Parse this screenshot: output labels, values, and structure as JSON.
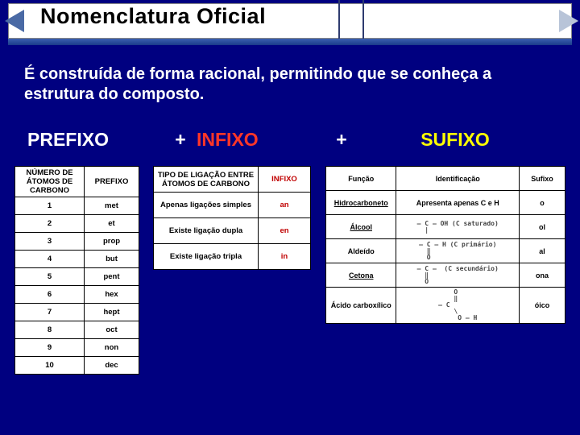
{
  "header": {
    "title": "Nomenclatura Oficial"
  },
  "subtitle": "É construída de forma racional, permitindo que se conheça a estrutura do composto.",
  "formula": {
    "prefixo": "PREFIXO",
    "plus": "+",
    "infixo": "INFIXO",
    "sufixo": "SUFIXO"
  },
  "tbl_prefixo": {
    "head": [
      "NÚMERO DE ÁTOMOS DE CARBONO",
      "PREFIXO"
    ],
    "rows": [
      [
        "1",
        "met"
      ],
      [
        "2",
        "et"
      ],
      [
        "3",
        "prop"
      ],
      [
        "4",
        "but"
      ],
      [
        "5",
        "pent"
      ],
      [
        "6",
        "hex"
      ],
      [
        "7",
        "hept"
      ],
      [
        "8",
        "oct"
      ],
      [
        "9",
        "non"
      ],
      [
        "10",
        "dec"
      ]
    ]
  },
  "tbl_infixo": {
    "head": [
      "TIPO DE LIGAÇÃO ENTRE ÁTOMOS DE CARBONO",
      "INFIXO"
    ],
    "rows": [
      [
        "Apenas ligações simples",
        "an"
      ],
      [
        "Existe ligação dupla",
        "en"
      ],
      [
        "Existe ligação tripla",
        "in"
      ]
    ]
  },
  "tbl_sufixo": {
    "head": [
      "Função",
      "Identificação",
      "Sufixo"
    ],
    "rows": [
      {
        "fn": "Hidrocarboneto",
        "fn_ul": true,
        "id_text": "Apresenta apenas C e H",
        "suf": "o"
      },
      {
        "fn": "Álcool",
        "fn_ul": true,
        "id_chem": "– C – OH (C saturado)\n  |",
        "suf": "ol"
      },
      {
        "fn": "Aldeído",
        "fn_ul": false,
        "id_chem": "– C – H (C primário)\n  ‖\n  O",
        "suf": "al"
      },
      {
        "fn": "Cetona",
        "fn_ul": true,
        "id_chem": "– C –  (C secundário)\n  ‖\n  O",
        "suf": "ona"
      },
      {
        "fn": "Ácido carboxílico",
        "fn_ul": false,
        "id_chem": "    O\n    ‖\n– C\n    \\\n     O – H",
        "suf": "óico"
      }
    ]
  },
  "colors": {
    "bg": "#000080",
    "infixo": "#ff3628",
    "sufixo": "#ffff00"
  }
}
